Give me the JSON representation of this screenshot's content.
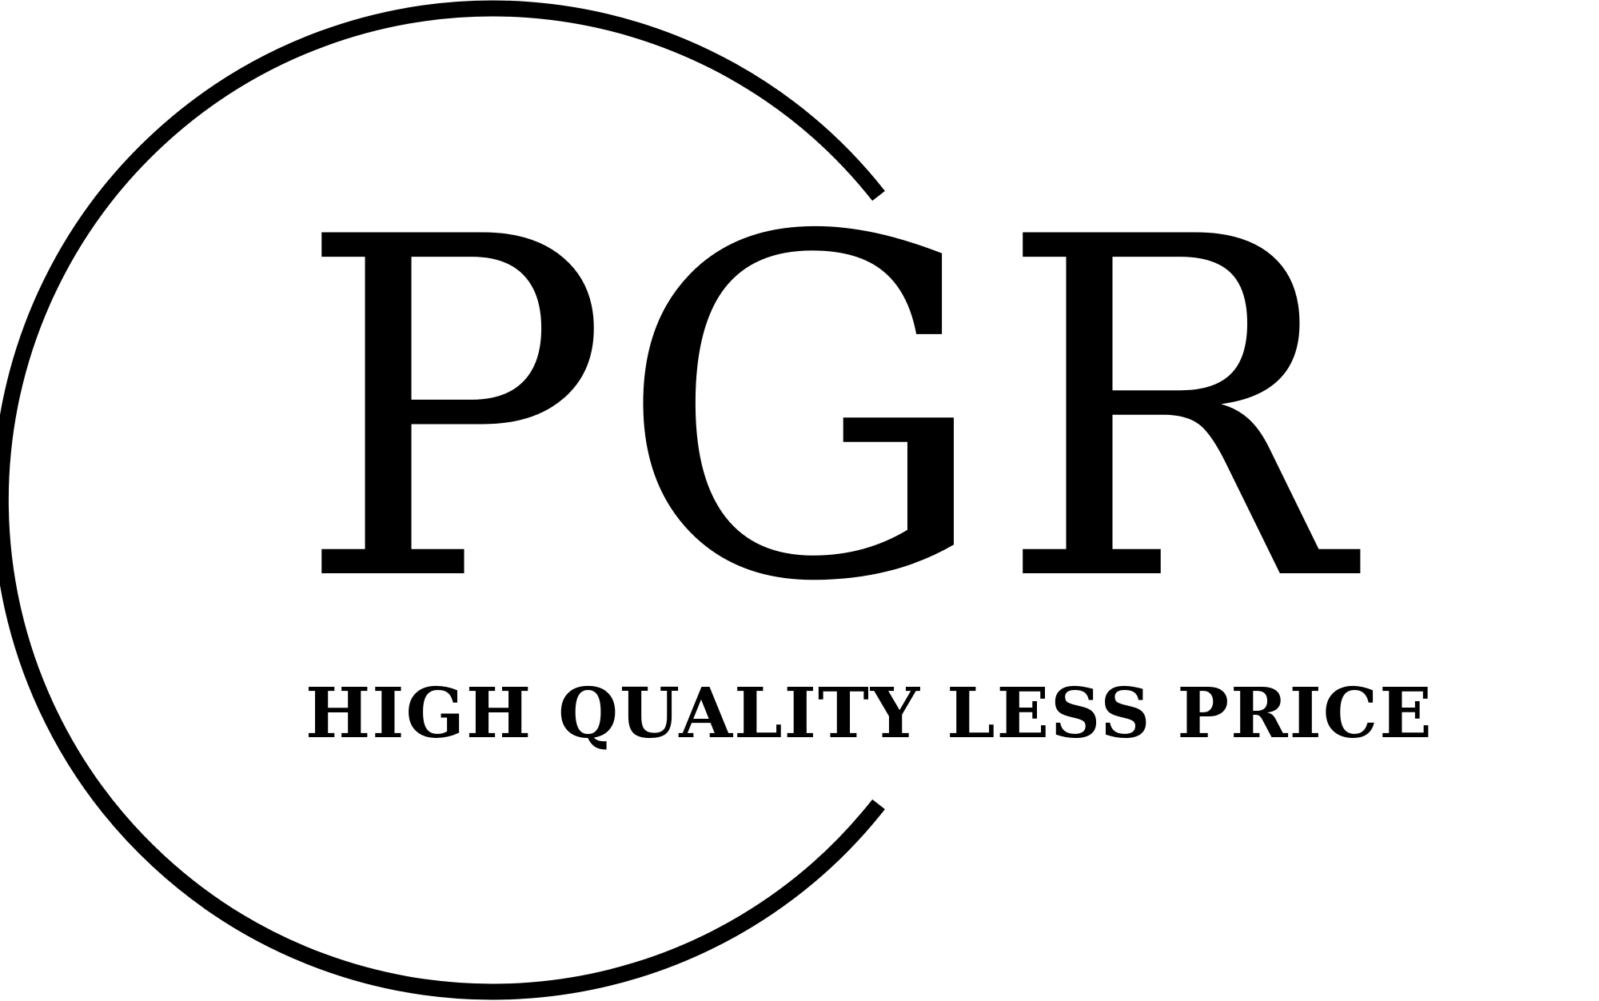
{
  "logo": {
    "monogram": [
      "P",
      "G",
      "R"
    ],
    "tagline": "HIGH QUALITY LESS PRICE",
    "colors": {
      "ink": "#000000",
      "background": "#ffffff"
    }
  }
}
